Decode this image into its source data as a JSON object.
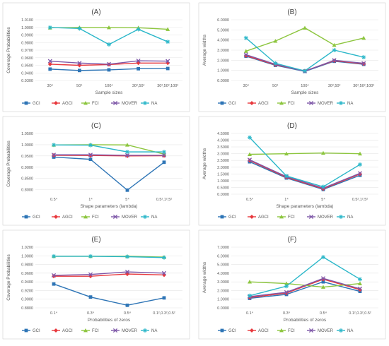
{
  "series_styles": [
    {
      "name": "GCI",
      "color": "#2E75B6",
      "marker": "square"
    },
    {
      "name": "AGCI",
      "color": "#E8383D",
      "marker": "diamond"
    },
    {
      "name": "FCI",
      "color": "#8DC63F",
      "marker": "triangle"
    },
    {
      "name": "MOVER",
      "color": "#7E57A8",
      "marker": "x"
    },
    {
      "name": "NA",
      "color": "#2BB7C9",
      "marker": "star"
    }
  ],
  "chart_data": [
    {
      "type": "line",
      "title": "(A)",
      "xlabel": "Sample sizes",
      "ylabel": "Coverage Probabilities",
      "categories": [
        "30⁴",
        "50⁴",
        "100⁴",
        "30²,50²",
        "30²,50²,100²"
      ],
      "ylim": [
        0.93,
        1.01
      ],
      "yticks": [
        0.93,
        0.94,
        0.95,
        0.96,
        0.97,
        0.98,
        0.99,
        1.0,
        1.01
      ],
      "yticklabels": [
        "0.9300",
        "0.9400",
        "0.9500",
        "0.9600",
        "0.9700",
        "0.9800",
        "0.9900",
        "1.0000",
        "1.0100"
      ],
      "series": [
        {
          "name": "GCI",
          "values": [
            0.945,
            0.9432,
            0.944,
            0.9455,
            0.9458
          ]
        },
        {
          "name": "AGCI",
          "values": [
            0.9515,
            0.95,
            0.951,
            0.953,
            0.953
          ]
        },
        {
          "name": "FCI",
          "values": [
            0.9995,
            0.9998,
            0.9998,
            0.9995,
            0.9975
          ]
        },
        {
          "name": "MOVER",
          "values": [
            0.9555,
            0.953,
            0.9515,
            0.956,
            0.9555
          ]
        },
        {
          "name": "NA",
          "values": [
            0.9998,
            0.9985,
            0.9775,
            0.9975,
            0.981
          ]
        }
      ]
    },
    {
      "type": "line",
      "title": "(B)",
      "xlabel": "Sample sizes",
      "ylabel": "Average widths",
      "categories": [
        "30⁴",
        "50⁴",
        "100⁴",
        "30²,50²",
        "30²,50²,100²"
      ],
      "ylim": [
        0,
        6
      ],
      "yticks": [
        0,
        1,
        2,
        3,
        4,
        5,
        6
      ],
      "yticklabels": [
        "0.0000",
        "1.0000",
        "2.0000",
        "3.0000",
        "4.0000",
        "5.0000",
        "6.0000"
      ],
      "series": [
        {
          "name": "GCI",
          "values": [
            2.4,
            1.5,
            0.9,
            1.9,
            1.6
          ]
        },
        {
          "name": "AGCI",
          "values": [
            2.45,
            1.55,
            0.95,
            1.95,
            1.65
          ]
        },
        {
          "name": "FCI",
          "values": [
            2.9,
            3.9,
            5.2,
            3.5,
            4.2
          ]
        },
        {
          "name": "MOVER",
          "values": [
            2.55,
            1.6,
            0.92,
            2.0,
            1.7
          ]
        },
        {
          "name": "NA",
          "values": [
            4.2,
            1.7,
            0.95,
            3.0,
            2.3
          ]
        }
      ]
    },
    {
      "type": "line",
      "title": "(C)",
      "xlabel": "Shape parameters (lambda)",
      "ylabel": "Coverage Probabilities",
      "categories": [
        "0.5⁴",
        "1⁴",
        "5⁴",
        "0.5²,1²,5²"
      ],
      "ylim": [
        0.78,
        1.05
      ],
      "yticks": [
        0.8,
        0.85,
        0.9,
        0.95,
        1.0,
        1.05
      ],
      "yticklabels": [
        "0.8000",
        "0.8500",
        "0.9000",
        "0.9500",
        "1.0000",
        "1.0500"
      ],
      "series": [
        {
          "name": "GCI",
          "values": [
            0.945,
            0.935,
            0.798,
            0.922
          ]
        },
        {
          "name": "AGCI",
          "values": [
            0.953,
            0.952,
            0.95,
            0.951
          ]
        },
        {
          "name": "FCI",
          "values": [
            0.999,
            1.0,
            0.999,
            0.958
          ]
        },
        {
          "name": "MOVER",
          "values": [
            0.955,
            0.955,
            0.953,
            0.953
          ]
        },
        {
          "name": "NA",
          "values": [
            0.999,
            0.998,
            0.968,
            0.968
          ]
        }
      ]
    },
    {
      "type": "line",
      "title": "(D)",
      "xlabel": "Shape parameters (lambda)",
      "ylabel": "Average widths",
      "categories": [
        "0.5⁴",
        "1⁴",
        "5⁴",
        "0.5²,1²,5²"
      ],
      "ylim": [
        0,
        4.5
      ],
      "yticks": [
        0,
        0.5,
        1,
        1.5,
        2,
        2.5,
        3,
        3.5,
        4,
        4.5
      ],
      "yticklabels": [
        "0.0000",
        "0.5000",
        "1.0000",
        "1.5000",
        "2.0000",
        "2.5000",
        "3.0000",
        "3.5000",
        "4.0000",
        "4.5000"
      ],
      "series": [
        {
          "name": "GCI",
          "values": [
            2.4,
            1.2,
            0.35,
            1.4
          ]
        },
        {
          "name": "AGCI",
          "values": [
            2.5,
            1.25,
            0.4,
            1.5
          ]
        },
        {
          "name": "FCI",
          "values": [
            2.95,
            3.0,
            3.05,
            3.0
          ]
        },
        {
          "name": "MOVER",
          "values": [
            2.55,
            1.3,
            0.45,
            1.55
          ]
        },
        {
          "name": "NA",
          "values": [
            4.2,
            1.35,
            0.55,
            2.2
          ]
        }
      ]
    },
    {
      "type": "line",
      "title": "(E)",
      "xlabel": "Probabilities of zeros",
      "ylabel": "Coverage Probabilities",
      "categories": [
        "0.1⁴",
        "0.3⁴",
        "0.5⁴",
        "0.1²,0.3²,0.5²"
      ],
      "ylim": [
        0.88,
        1.02
      ],
      "yticks": [
        0.88,
        0.9,
        0.92,
        0.94,
        0.96,
        0.98,
        1.0,
        1.02
      ],
      "yticklabels": [
        "0.8800",
        "0.9000",
        "0.9200",
        "0.9400",
        "0.9600",
        "0.9800",
        "1.0000",
        "1.0200"
      ],
      "series": [
        {
          "name": "GCI",
          "values": [
            0.935,
            0.905,
            0.886,
            0.903
          ]
        },
        {
          "name": "AGCI",
          "values": [
            0.953,
            0.953,
            0.958,
            0.956
          ]
        },
        {
          "name": "FCI",
          "values": [
            0.999,
            0.999,
            0.999,
            0.997
          ]
        },
        {
          "name": "MOVER",
          "values": [
            0.955,
            0.957,
            0.963,
            0.96
          ]
        },
        {
          "name": "NA",
          "values": [
            0.999,
            0.999,
            0.998,
            0.996
          ]
        }
      ]
    },
    {
      "type": "line",
      "title": "(F)",
      "xlabel": "Probabilities of zeros",
      "ylabel": "Average widths",
      "categories": [
        "0.1⁴",
        "0.3⁴",
        "0.5⁴",
        "0.1²,0.3²,0.5²"
      ],
      "ylim": [
        0,
        7
      ],
      "yticks": [
        0,
        1,
        2,
        3,
        4,
        5,
        6,
        7
      ],
      "yticklabels": [
        "0.0000",
        "1.0000",
        "2.0000",
        "3.0000",
        "4.0000",
        "5.0000",
        "6.0000",
        "7.0000"
      ],
      "series": [
        {
          "name": "GCI",
          "values": [
            1.1,
            1.55,
            3.0,
            1.9
          ]
        },
        {
          "name": "AGCI",
          "values": [
            1.2,
            1.7,
            3.3,
            2.1
          ]
        },
        {
          "name": "FCI",
          "values": [
            3.0,
            2.8,
            2.4,
            2.8
          ]
        },
        {
          "name": "MOVER",
          "values": [
            1.3,
            1.8,
            3.4,
            2.2
          ]
        },
        {
          "name": "NA",
          "values": [
            1.4,
            2.5,
            5.85,
            3.3
          ]
        }
      ]
    }
  ]
}
